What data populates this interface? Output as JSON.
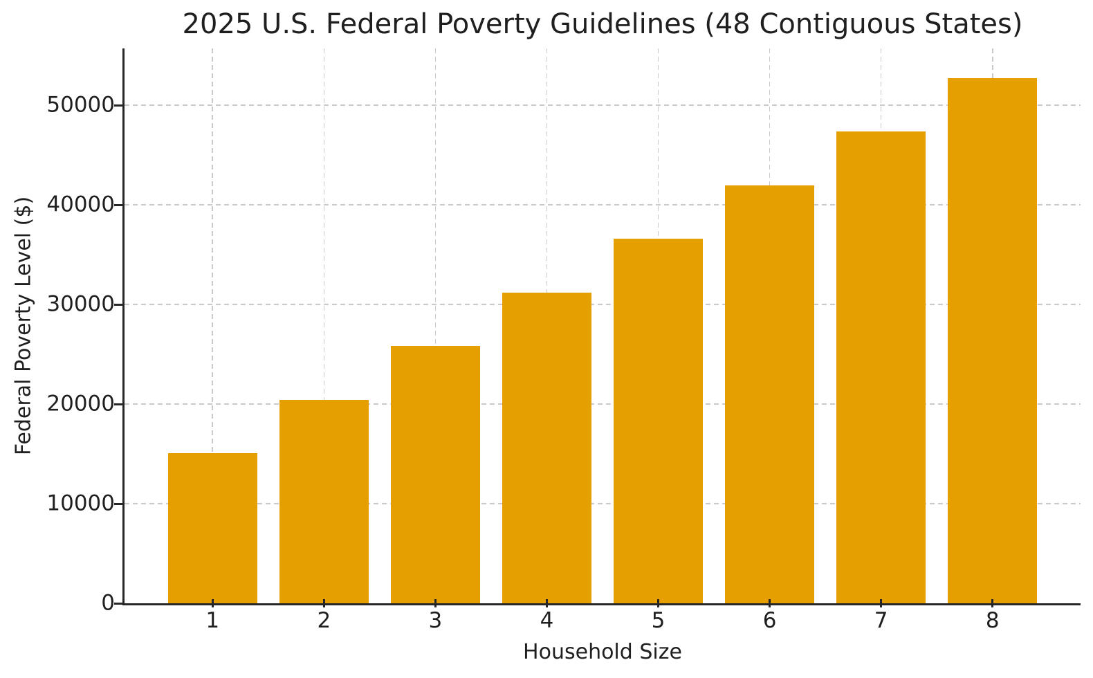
{
  "chart_data": {
    "type": "bar",
    "title": "2025 U.S. Federal Poverty Guidelines (48 Contiguous States)",
    "xlabel": "Household Size",
    "ylabel": "Federal Poverty Level ($)",
    "categories": [
      "1",
      "2",
      "3",
      "4",
      "5",
      "6",
      "7",
      "8"
    ],
    "values": [
      15060,
      20440,
      25820,
      31200,
      36580,
      41960,
      47340,
      52720
    ],
    "yticks": [
      0,
      10000,
      20000,
      30000,
      40000,
      50000
    ],
    "ylim": [
      0,
      55700
    ],
    "xlim": [
      0.21,
      8.79
    ],
    "bar_width_units": 0.8,
    "grid": true,
    "grid_style": "dashed",
    "legend_position": "none",
    "colors": {
      "bar": "#E69F00",
      "grid": "#C9C9C9",
      "text": "#1F1F1F",
      "spine": "#262626",
      "background": "#FFFFFF"
    }
  }
}
